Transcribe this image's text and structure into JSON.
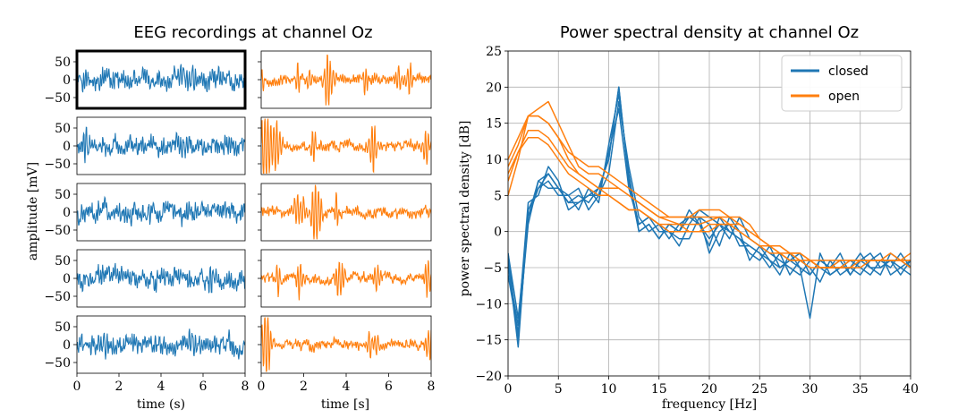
{
  "colors": {
    "closed": "#1f77b4",
    "open": "#ff7f0e",
    "grid": "#b0b0b0",
    "axis": "#000000"
  },
  "chart_data": [
    {
      "type": "line",
      "name": "eeg",
      "title": "EEG recordings at channel Oz",
      "ylabel": "amplitude [mV]",
      "xlabel_left": "time (s)",
      "xlabel_right": "time [s]",
      "xlim": [
        0,
        8
      ],
      "ylim": [
        -80,
        80
      ],
      "xticks": [
        "0",
        "2",
        "4",
        "6",
        "8"
      ],
      "yticks": [
        "50",
        "0",
        "−50"
      ],
      "ytick_values": [
        50,
        0,
        -50
      ],
      "rows": 5,
      "highlighted_panel": [
        0,
        0
      ],
      "series": [
        {
          "condition": "closed",
          "column": 0
        },
        {
          "condition": "open",
          "column": 1
        }
      ]
    },
    {
      "type": "line",
      "name": "psd",
      "title": "Power spectral density at channel Oz",
      "xlabel": "frequency [Hz]",
      "ylabel": "power spectral density [dB]",
      "xlim": [
        0,
        40
      ],
      "ylim": [
        -20,
        25
      ],
      "xticks": [
        "0",
        "5",
        "10",
        "15",
        "20",
        "25",
        "30",
        "35",
        "40"
      ],
      "yticks": [
        "25",
        "20",
        "15",
        "10",
        "5",
        "0",
        "−5",
        "−10",
        "−15",
        "−20"
      ],
      "grid": true,
      "legend": {
        "placement": "top-right",
        "entries": [
          "closed",
          "open"
        ]
      },
      "x": [
        0,
        1,
        2,
        3,
        4,
        5,
        6,
        7,
        8,
        9,
        10,
        11,
        12,
        13,
        14,
        15,
        16,
        17,
        18,
        19,
        20,
        21,
        22,
        23,
        24,
        25,
        26,
        27,
        28,
        29,
        30,
        31,
        32,
        33,
        34,
        35,
        36,
        37,
        38,
        39,
        40
      ],
      "series": [
        {
          "condition": "closed",
          "values": [
            -3,
            -12,
            2,
            7,
            8,
            6,
            4,
            5,
            4,
            6,
            10,
            20,
            7,
            1,
            2,
            1,
            0,
            -2,
            1,
            3,
            2,
            1,
            -1,
            2,
            -1,
            -2,
            -3,
            -4,
            -5,
            -6,
            -4,
            -5,
            -6,
            -5,
            -4,
            -5,
            -6,
            -4,
            -5,
            -3,
            -5
          ]
        },
        {
          "condition": "closed",
          "values": [
            -4,
            -16,
            3,
            6,
            7,
            5,
            5,
            3,
            6,
            4,
            12,
            19,
            8,
            0,
            1,
            -1,
            1,
            0,
            3,
            1,
            -2,
            2,
            0,
            -1,
            -3,
            -4,
            -2,
            -5,
            -4,
            -3,
            -6,
            -4,
            -5,
            -3,
            -6,
            -4,
            -3,
            -5,
            -4,
            -6,
            -4
          ]
        },
        {
          "condition": "closed",
          "values": [
            -5,
            -13,
            4,
            5,
            9,
            7,
            3,
            4,
            5,
            5,
            8,
            18,
            9,
            2,
            0,
            1,
            -1,
            1,
            2,
            2,
            -3,
            0,
            1,
            -2,
            -2,
            -3,
            -5,
            -3,
            -6,
            -4,
            -5,
            -7,
            -4,
            -6,
            -5,
            -3,
            -5,
            -6,
            -3,
            -4,
            -5
          ]
        },
        {
          "condition": "closed",
          "values": [
            -6,
            -14,
            1,
            7,
            6,
            6,
            5,
            6,
            3,
            5,
            11,
            17,
            6,
            1,
            2,
            0,
            0,
            -1,
            -1,
            2,
            1,
            -2,
            2,
            0,
            -4,
            -2,
            -4,
            -6,
            -3,
            -5,
            -12,
            -3,
            -6,
            -5,
            -5,
            -6,
            -4,
            -3,
            -6,
            -5,
            -4
          ]
        },
        {
          "condition": "closed",
          "values": [
            -3,
            -15,
            2,
            6,
            8,
            6,
            4,
            4,
            5,
            6,
            10,
            20,
            7,
            0,
            1,
            -1,
            1,
            0,
            2,
            1,
            -1,
            1,
            0,
            -1,
            -2,
            -3,
            -4,
            -5,
            -4,
            -5,
            -6,
            -4,
            -5,
            -4,
            -6,
            -4,
            -5,
            -5,
            -4,
            -5,
            -6
          ]
        },
        {
          "condition": "open",
          "values": [
            5,
            10,
            16,
            17,
            18,
            15,
            12,
            9,
            8,
            8,
            7,
            6,
            5,
            4,
            3,
            2,
            1.5,
            1,
            1,
            1,
            1.5,
            2,
            2,
            2,
            1,
            -1,
            -2,
            -3,
            -3,
            -4,
            -4,
            -5,
            -5,
            -4,
            -4,
            -4,
            -4,
            -4,
            -3,
            -4,
            -4
          ]
        },
        {
          "condition": "open",
          "values": [
            10,
            13,
            16,
            16,
            15,
            13,
            11,
            10,
            9,
            9,
            8,
            7,
            6,
            5,
            4,
            3,
            2,
            2,
            2,
            2,
            2,
            2,
            1,
            0,
            -1,
            -2,
            -2,
            -3,
            -4,
            -4,
            -5,
            -5,
            -5,
            -5,
            -5,
            -4,
            -4,
            -4,
            -4,
            -4,
            -4
          ]
        },
        {
          "condition": "open",
          "values": [
            7,
            11,
            14,
            14,
            13,
            11,
            9,
            8,
            7,
            6,
            5,
            4,
            3,
            3,
            2,
            1,
            1,
            1,
            0,
            0,
            1,
            1,
            1,
            0,
            -1,
            -2,
            -3,
            -3,
            -4,
            -4,
            -4,
            -5,
            -5,
            -5,
            -5,
            -5,
            -4,
            -4,
            -4,
            -4,
            -4
          ]
        },
        {
          "condition": "open",
          "values": [
            8,
            11,
            13,
            13,
            12,
            10,
            8,
            7,
            6,
            5,
            5,
            4,
            3,
            3,
            2,
            1,
            0,
            0,
            0,
            0,
            0,
            1,
            1,
            1,
            0,
            -1,
            -2,
            -2,
            -3,
            -3,
            -4,
            -4,
            -4,
            -4,
            -4,
            -4,
            -4,
            -4,
            -4,
            -4,
            -3
          ]
        },
        {
          "condition": "open",
          "values": [
            9,
            12,
            16,
            16,
            15,
            13,
            10,
            8,
            7,
            6,
            6,
            6,
            5,
            4,
            3,
            2,
            2,
            2,
            2,
            3,
            3,
            3,
            2,
            1,
            0,
            -1,
            -2,
            -2,
            -3,
            -3,
            -4,
            -5,
            -5,
            -5,
            -4,
            -4,
            -4,
            -4,
            -4,
            -4,
            -5
          ]
        }
      ]
    }
  ]
}
